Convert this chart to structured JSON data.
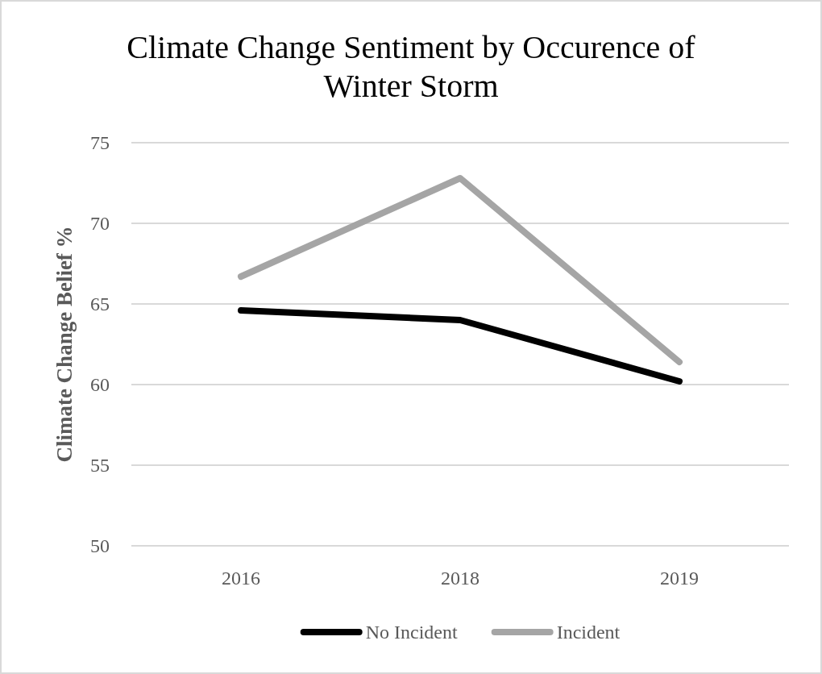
{
  "chart_data": {
    "type": "line",
    "title": "Climate Change Sentiment by Occurence of Winter Storm",
    "ylabel": "Climate Change Belief %",
    "categories": [
      "2016",
      "2018",
      "2019"
    ],
    "series": [
      {
        "name": "No Incident",
        "color": "#000000",
        "values": [
          64.6,
          64.0,
          60.2
        ]
      },
      {
        "name": "Incident",
        "color": "#a5a5a5",
        "values": [
          66.7,
          72.8,
          61.4
        ]
      }
    ],
    "ylim": [
      50,
      75
    ],
    "yticks": [
      50,
      55,
      60,
      65,
      70,
      75
    ],
    "grid": "y",
    "legend": "bottom",
    "line_style": "solid"
  }
}
